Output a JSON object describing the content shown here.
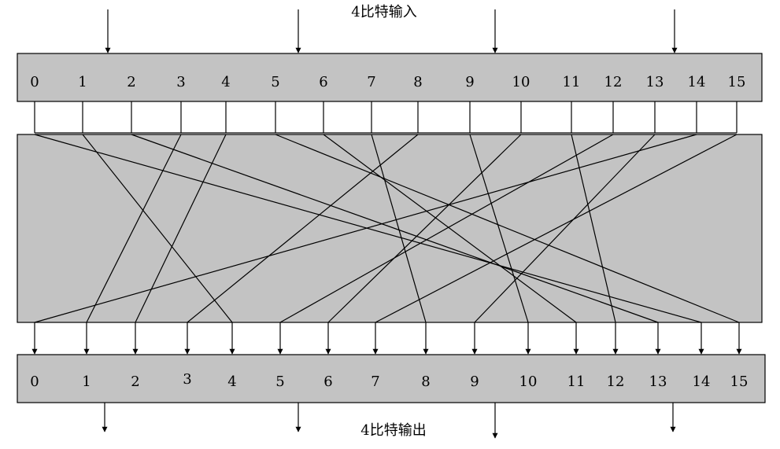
{
  "input_caption": "4比特输入",
  "output_caption": "4比特输出",
  "input_labels": [
    "0",
    "1",
    "2",
    "3",
    "4",
    "5",
    "6",
    "7",
    "8",
    "9",
    "10",
    "11",
    "12",
    "13",
    "14",
    "15"
  ],
  "output_labels": [
    "0",
    "1",
    "2",
    "3",
    "4",
    "5",
    "6",
    "7",
    "8",
    "9",
    "10",
    "11",
    "12",
    "13",
    "14",
    "15"
  ],
  "wiring": [
    {
      "from": 0,
      "to": 14
    },
    {
      "from": 1,
      "to": 4
    },
    {
      "from": 2,
      "to": 13
    },
    {
      "from": 3,
      "to": 1
    },
    {
      "from": 4,
      "to": 2
    },
    {
      "from": 5,
      "to": 15
    },
    {
      "from": 6,
      "to": 11
    },
    {
      "from": 7,
      "to": 8
    },
    {
      "from": 8,
      "to": 3
    },
    {
      "from": 9,
      "to": 10
    },
    {
      "from": 10,
      "to": 6
    },
    {
      "from": 11,
      "to": 12
    },
    {
      "from": 12,
      "to": 5
    },
    {
      "from": 13,
      "to": 9
    },
    {
      "from": 14,
      "to": 0
    },
    {
      "from": 15,
      "to": 7
    }
  ]
}
